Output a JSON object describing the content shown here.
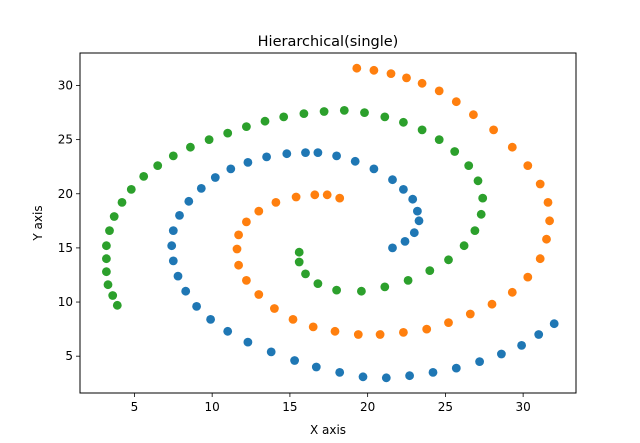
{
  "chart_data": {
    "type": "scatter",
    "title": "Hierarchical(single)",
    "xlabel": "X axis",
    "ylabel": "Y axis",
    "xlim": [
      1.5,
      33.4
    ],
    "ylim": [
      1.6,
      33.0
    ],
    "xticks": [
      5,
      10,
      15,
      20,
      25,
      30
    ],
    "yticks": [
      5,
      10,
      15,
      20,
      25,
      30
    ],
    "grid": false,
    "legend": "none",
    "series": [
      {
        "color": "#1f77b4",
        "points": [
          [
            21.6,
            15.0
          ],
          [
            22.4,
            15.6
          ],
          [
            23.0,
            16.4
          ],
          [
            23.3,
            17.5
          ],
          [
            23.2,
            18.4
          ],
          [
            22.9,
            19.5
          ],
          [
            22.3,
            20.4
          ],
          [
            21.6,
            21.3
          ],
          [
            20.4,
            22.3
          ],
          [
            19.2,
            23.0
          ],
          [
            18.0,
            23.5
          ],
          [
            16.8,
            23.8
          ],
          [
            16.0,
            23.8
          ],
          [
            14.8,
            23.7
          ],
          [
            13.5,
            23.4
          ],
          [
            12.3,
            22.9
          ],
          [
            11.2,
            22.3
          ],
          [
            10.2,
            21.5
          ],
          [
            9.3,
            20.5
          ],
          [
            8.5,
            19.3
          ],
          [
            7.9,
            18.0
          ],
          [
            7.5,
            16.6
          ],
          [
            7.4,
            15.2
          ],
          [
            7.5,
            13.8
          ],
          [
            7.8,
            12.4
          ],
          [
            8.3,
            11.0
          ],
          [
            9.0,
            9.6
          ],
          [
            9.9,
            8.4
          ],
          [
            11.0,
            7.3
          ],
          [
            12.3,
            6.3
          ],
          [
            13.8,
            5.4
          ],
          [
            15.3,
            4.6
          ],
          [
            16.7,
            4.0
          ],
          [
            18.2,
            3.5
          ],
          [
            19.7,
            3.1
          ],
          [
            21.2,
            3.0
          ],
          [
            22.7,
            3.2
          ],
          [
            24.2,
            3.5
          ],
          [
            25.7,
            3.9
          ],
          [
            27.2,
            4.5
          ],
          [
            28.6,
            5.2
          ],
          [
            29.9,
            6.0
          ],
          [
            31.0,
            7.0
          ],
          [
            32.0,
            8.0
          ]
        ]
      },
      {
        "color": "#ff7f0e",
        "points": [
          [
            19.3,
            31.6
          ],
          [
            20.4,
            31.4
          ],
          [
            21.5,
            31.1
          ],
          [
            22.5,
            30.7
          ],
          [
            23.5,
            30.2
          ],
          [
            24.6,
            29.5
          ],
          [
            25.7,
            28.5
          ],
          [
            26.8,
            27.3
          ],
          [
            28.1,
            25.9
          ],
          [
            29.3,
            24.3
          ],
          [
            30.3,
            22.6
          ],
          [
            31.1,
            20.9
          ],
          [
            31.6,
            19.2
          ],
          [
            31.7,
            17.5
          ],
          [
            31.5,
            15.8
          ],
          [
            31.1,
            14.0
          ],
          [
            30.3,
            12.3
          ],
          [
            29.3,
            10.9
          ],
          [
            28.0,
            9.8
          ],
          [
            26.6,
            8.9
          ],
          [
            25.2,
            8.1
          ],
          [
            23.8,
            7.5
          ],
          [
            22.3,
            7.2
          ],
          [
            20.8,
            7.0
          ],
          [
            19.4,
            7.0
          ],
          [
            17.9,
            7.3
          ],
          [
            16.5,
            7.7
          ],
          [
            15.2,
            8.4
          ],
          [
            14.0,
            9.4
          ],
          [
            13.0,
            10.7
          ],
          [
            12.2,
            12.0
          ],
          [
            11.7,
            13.4
          ],
          [
            11.6,
            14.9
          ],
          [
            11.7,
            16.2
          ],
          [
            12.2,
            17.4
          ],
          [
            13.0,
            18.4
          ],
          [
            14.1,
            19.2
          ],
          [
            15.4,
            19.7
          ],
          [
            16.6,
            19.9
          ],
          [
            17.4,
            19.9
          ],
          [
            18.2,
            19.6
          ]
        ]
      },
      {
        "color": "#2ca02c",
        "points": [
          [
            3.9,
            9.7
          ],
          [
            3.6,
            10.6
          ],
          [
            3.3,
            11.6
          ],
          [
            3.2,
            12.8
          ],
          [
            3.2,
            14.0
          ],
          [
            3.2,
            15.2
          ],
          [
            3.4,
            16.6
          ],
          [
            3.7,
            17.9
          ],
          [
            4.2,
            19.2
          ],
          [
            4.8,
            20.4
          ],
          [
            5.6,
            21.6
          ],
          [
            6.5,
            22.6
          ],
          [
            7.5,
            23.5
          ],
          [
            8.6,
            24.3
          ],
          [
            9.8,
            25.0
          ],
          [
            11.0,
            25.6
          ],
          [
            12.2,
            26.2
          ],
          [
            13.4,
            26.7
          ],
          [
            14.6,
            27.1
          ],
          [
            15.9,
            27.4
          ],
          [
            17.2,
            27.6
          ],
          [
            18.5,
            27.7
          ],
          [
            19.8,
            27.5
          ],
          [
            21.1,
            27.1
          ],
          [
            22.3,
            26.6
          ],
          [
            23.5,
            25.9
          ],
          [
            24.6,
            25.0
          ],
          [
            25.6,
            23.9
          ],
          [
            26.5,
            22.6
          ],
          [
            27.1,
            21.2
          ],
          [
            27.4,
            19.6
          ],
          [
            27.3,
            18.1
          ],
          [
            26.9,
            16.6
          ],
          [
            26.2,
            15.2
          ],
          [
            25.2,
            13.9
          ],
          [
            24.0,
            12.9
          ],
          [
            22.6,
            12.0
          ],
          [
            21.1,
            11.4
          ],
          [
            19.6,
            11.0
          ],
          [
            18.0,
            11.1
          ],
          [
            16.8,
            11.7
          ],
          [
            16.0,
            12.6
          ],
          [
            15.6,
            13.7
          ],
          [
            15.6,
            14.6
          ]
        ]
      }
    ]
  }
}
